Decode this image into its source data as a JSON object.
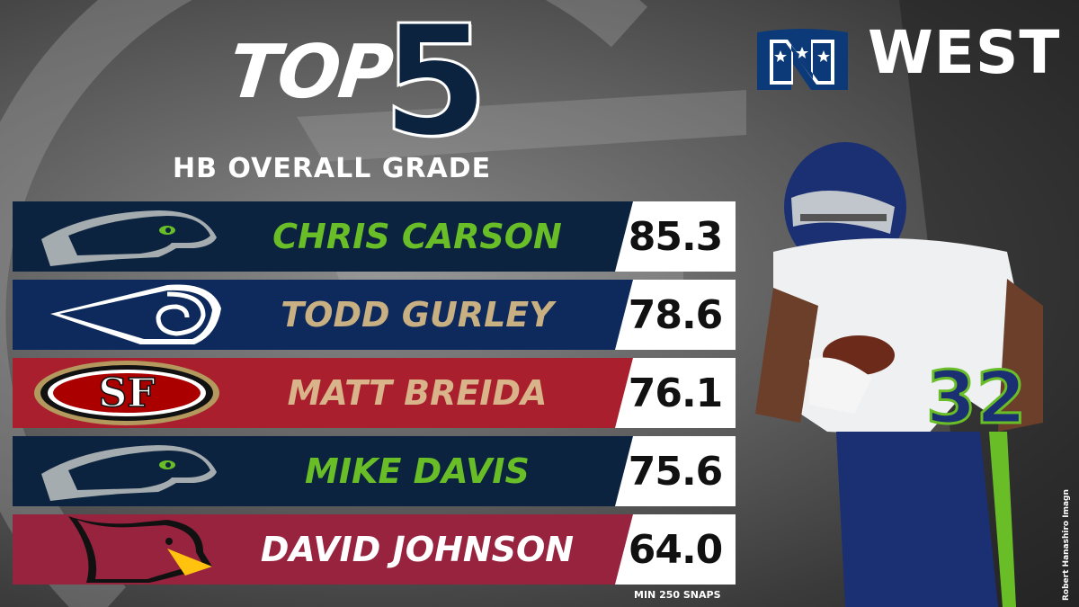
{
  "header": {
    "title_word": "TOP",
    "title_number": "5",
    "subtitle": "HB OVERALL GRADE",
    "division": "WEST"
  },
  "rows": [
    {
      "name": "CHRIS CARSON",
      "score": "85.3",
      "team": "seahawks-logo",
      "band_color": "#0c2340",
      "name_color": "#69be28"
    },
    {
      "name": "TODD GURLEY",
      "score": "78.6",
      "team": "rams-logo",
      "band_color": "#0e2a5c",
      "name_color": "#c9b083"
    },
    {
      "name": "MATT BREIDA",
      "score": "76.1",
      "team": "49ers-logo",
      "band_color": "#a91f2e",
      "name_color": "#d9b48a"
    },
    {
      "name": "MIKE DAVIS",
      "score": "75.6",
      "team": "seahawks-logo",
      "band_color": "#0c2340",
      "name_color": "#69be28"
    },
    {
      "name": "DAVID JOHNSON",
      "score": "64.0",
      "team": "cardinals-logo",
      "band_color": "#97233f",
      "name_color": "#ffffff"
    }
  ],
  "footnote": "MIN 250 SNAPS",
  "credit": "Robert Hanashiro Imagn",
  "colors": {
    "navy": "#0c2340",
    "seahawks_green": "#69be28",
    "niners_red": "#a91f2e",
    "cardinals_red": "#97233f"
  }
}
